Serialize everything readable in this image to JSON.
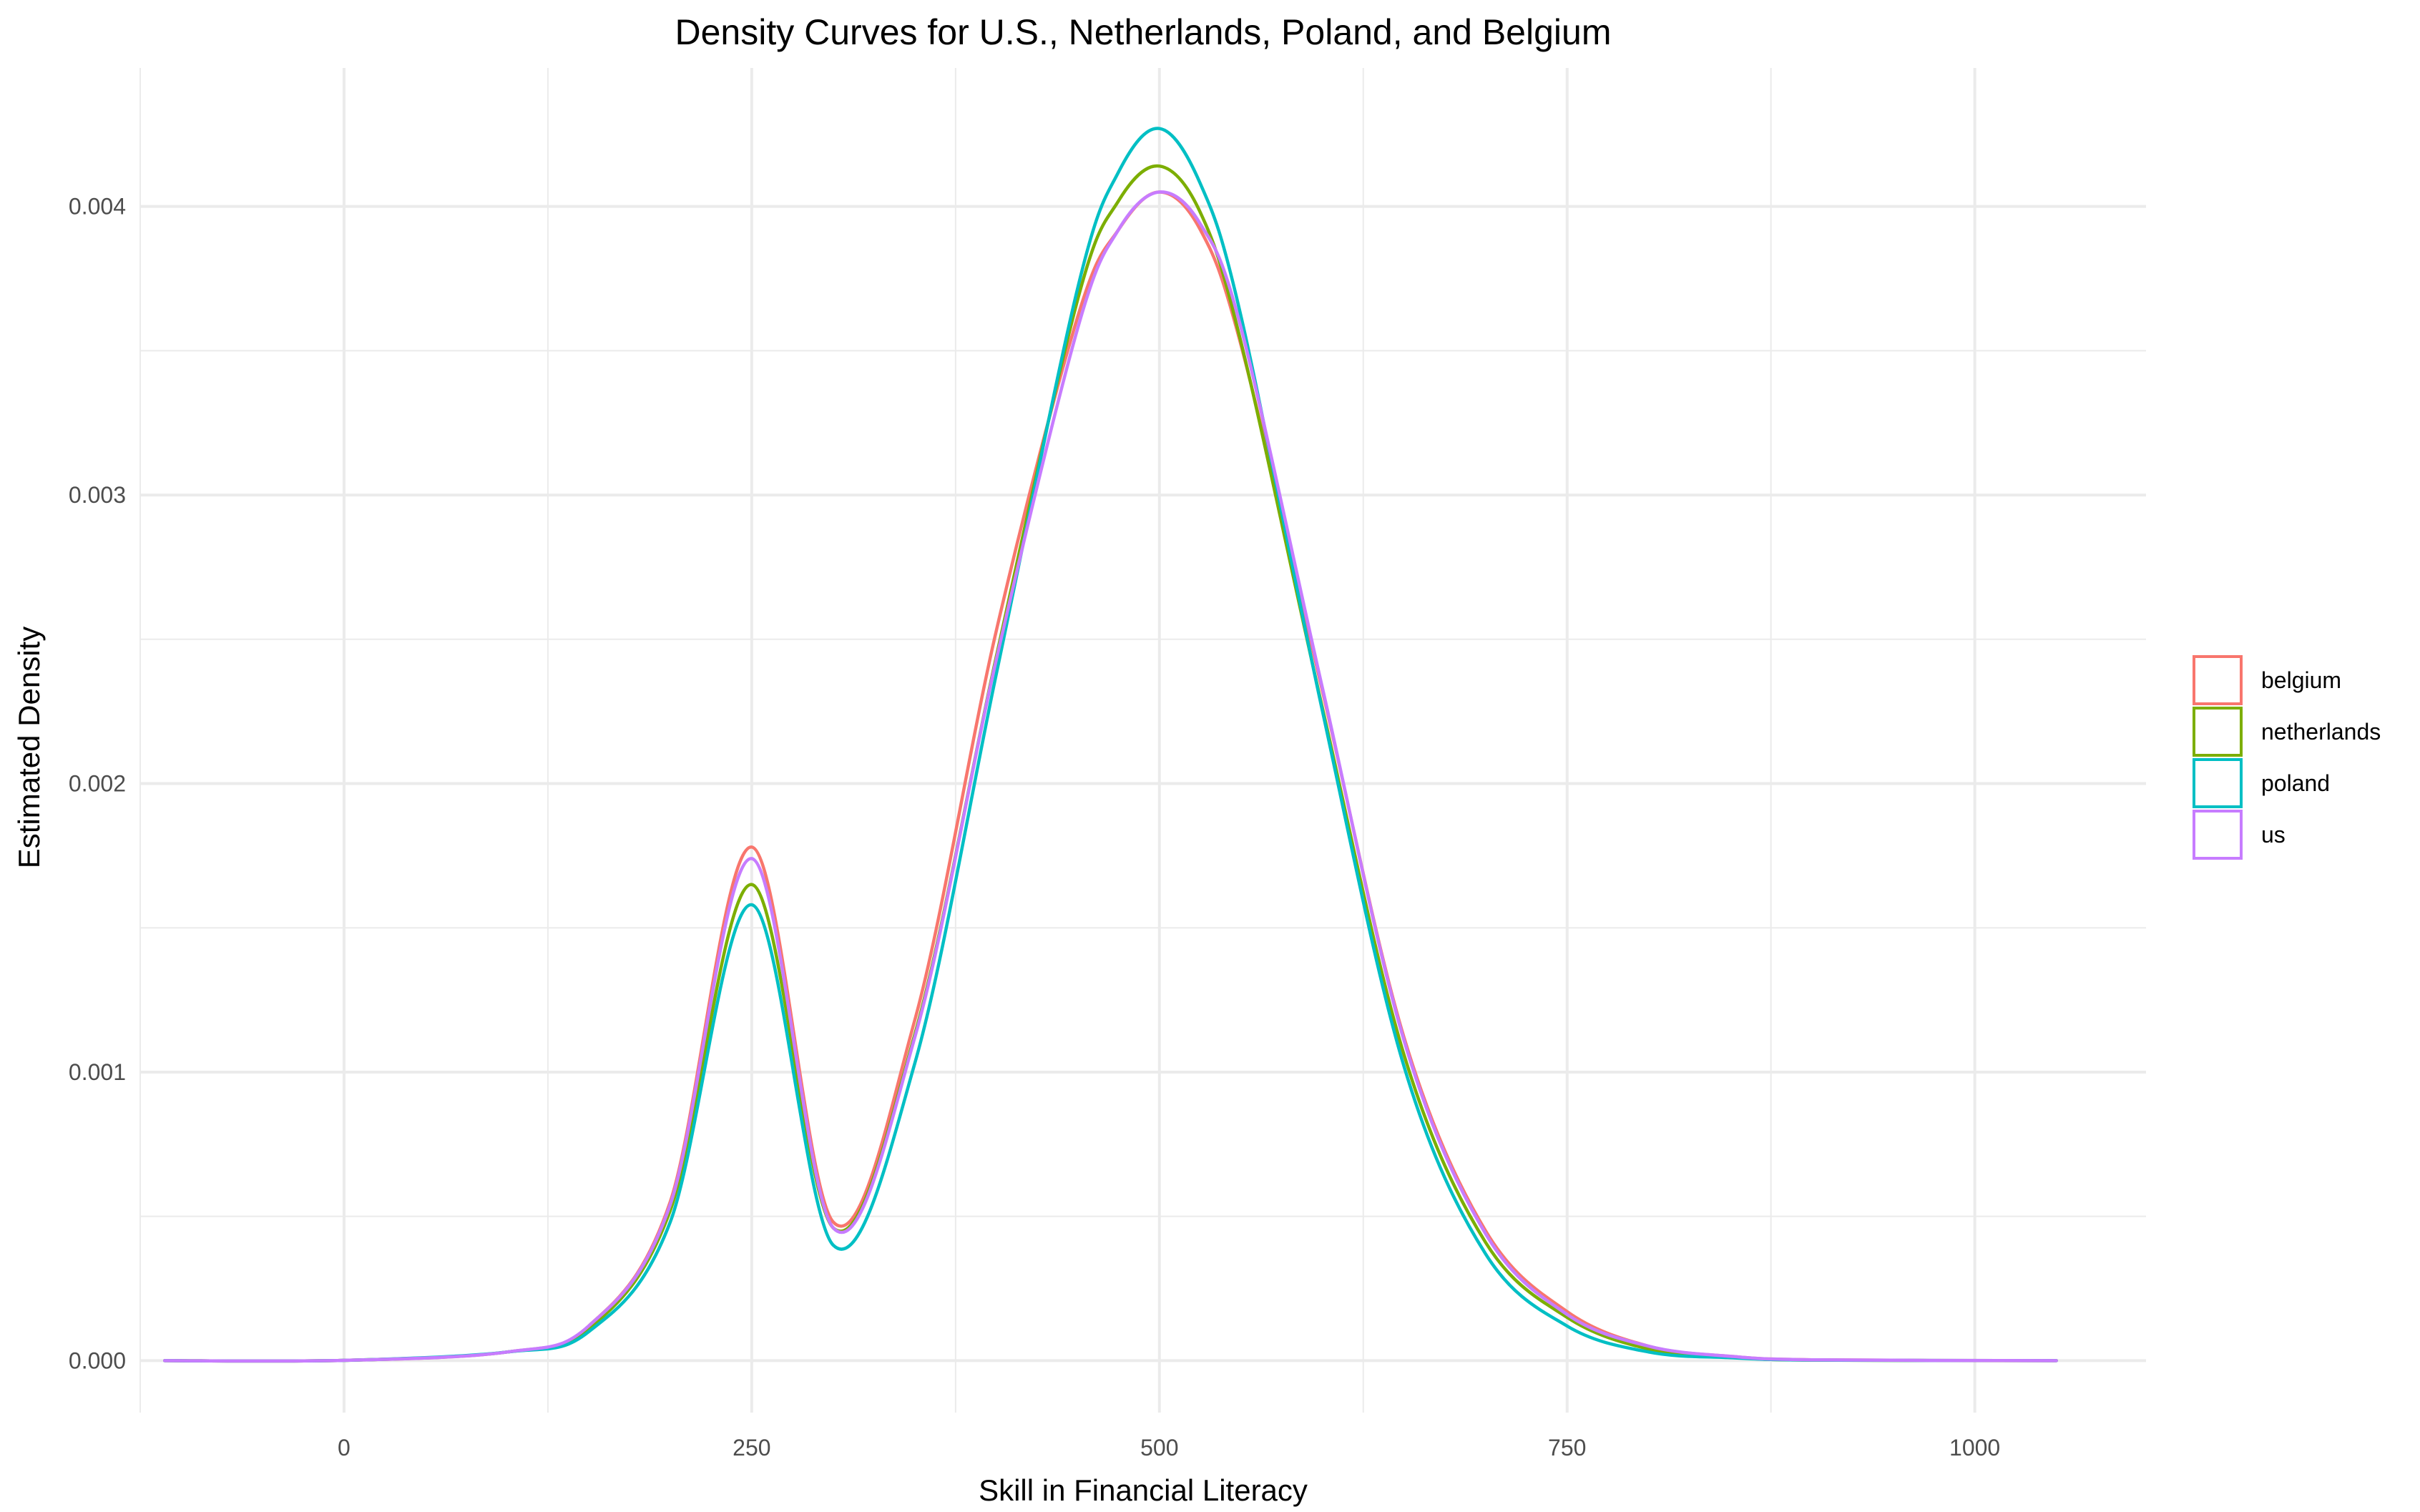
{
  "chart_data": {
    "type": "line",
    "title": "Density Curves for U.S., Netherlands, Poland, and Belgium",
    "xlabel": "Skill in Financial Literacy",
    "ylabel": "Estimated Density",
    "xlim": [
      -125,
      1105
    ],
    "ylim": [
      -0.00018,
      0.00448
    ],
    "x_ticks": [
      0,
      250,
      500,
      750,
      1000
    ],
    "x_tick_labels": [
      "0",
      "250",
      "500",
      "750",
      "1000"
    ],
    "y_ticks": [
      0,
      0.001,
      0.002,
      0.003,
      0.004
    ],
    "y_tick_labels": [
      "0.000",
      "0.001",
      "0.002",
      "0.003",
      "0.004"
    ],
    "grid": true,
    "legend_position": "right",
    "x": [
      -110,
      0,
      100,
      150,
      200,
      250,
      300,
      350,
      400,
      450,
      475,
      500,
      525,
      550,
      600,
      650,
      700,
      750,
      800,
      850,
      900,
      1050
    ],
    "series": [
      {
        "name": "belgium",
        "color": "#F8766D",
        "values": [
          0,
          1e-06,
          3e-05,
          0.00012,
          0.00055,
          0.00178,
          0.00048,
          0.00118,
          0.00253,
          0.00362,
          0.00392,
          0.00405,
          0.00392,
          0.00352,
          0.00232,
          0.00112,
          0.00045,
          0.00017,
          5e-05,
          1.5e-05,
          3e-06,
          0
        ]
      },
      {
        "name": "netherlands",
        "color": "#7CAE00",
        "values": [
          0,
          1e-06,
          3e-05,
          0.00011,
          0.00052,
          0.00165,
          0.00046,
          0.00113,
          0.00244,
          0.00368,
          0.00402,
          0.00414,
          0.00398,
          0.00353,
          0.00226,
          0.00106,
          0.00041,
          0.00015,
          4e-05,
          1.2e-05,
          2e-06,
          0
        ]
      },
      {
        "name": "poland",
        "color": "#00BFC4",
        "values": [
          0,
          1e-06,
          3e-05,
          0.0001,
          0.00048,
          0.00158,
          0.0004,
          0.00103,
          0.00238,
          0.00372,
          0.00412,
          0.00427,
          0.00408,
          0.00362,
          0.00225,
          0.00102,
          0.00037,
          0.00012,
          3e-05,
          1e-05,
          2e-06,
          0
        ]
      },
      {
        "name": "us",
        "color": "#C77CFF",
        "values": [
          0,
          1e-06,
          3e-05,
          0.00012,
          0.00054,
          0.00174,
          0.00046,
          0.00112,
          0.00243,
          0.00358,
          0.00392,
          0.00405,
          0.00394,
          0.00358,
          0.00233,
          0.00111,
          0.00044,
          0.00016,
          5e-05,
          1.5e-05,
          3e-06,
          0
        ]
      }
    ]
  }
}
